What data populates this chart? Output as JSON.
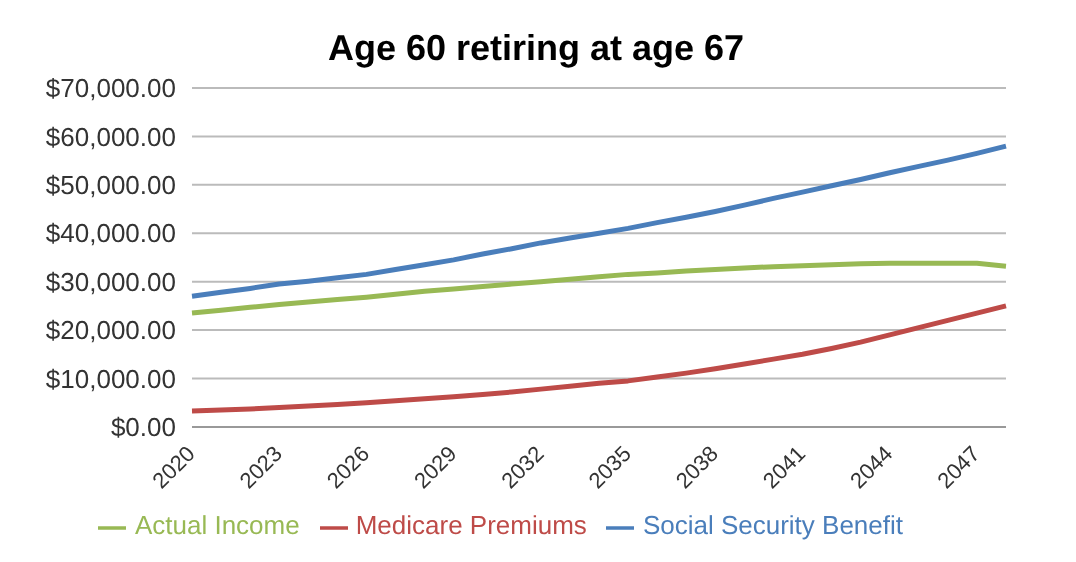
{
  "chart_data": {
    "type": "line",
    "title": "Age 60 retiring at age 67",
    "categories": [
      "2020",
      null,
      null,
      "2023",
      null,
      null,
      "2026",
      null,
      null,
      "2029",
      null,
      null,
      "2032",
      null,
      null,
      "2035",
      null,
      null,
      "2038",
      null,
      null,
      "2041",
      null,
      null,
      "2044",
      null,
      null,
      "2047",
      null
    ],
    "series": [
      {
        "name": "Social Security Benefit",
        "color": "#4a7ebb",
        "values": [
          27000,
          27800,
          28600,
          29500,
          30100,
          30800,
          31500,
          32500,
          33500,
          34500,
          35700,
          36800,
          38000,
          39000,
          40000,
          41000,
          42200,
          43300,
          44500,
          45800,
          47200,
          48500,
          49800,
          51100,
          52500,
          53800,
          55100,
          56500,
          58000
        ]
      },
      {
        "name": "Medicare Premiums",
        "color": "#be4b48",
        "values": [
          3300,
          3500,
          3700,
          4000,
          4300,
          4600,
          5000,
          5400,
          5800,
          6200,
          6700,
          7200,
          7800,
          8400,
          9000,
          9500,
          10300,
          11100,
          12000,
          13000,
          14000,
          15000,
          16200,
          17500,
          19000,
          20500,
          22000,
          23500,
          25000
        ]
      },
      {
        "name": "Actual Income",
        "color": "#98b954",
        "values": [
          23500,
          24100,
          24700,
          25300,
          25800,
          26300,
          26800,
          27400,
          28000,
          28500,
          29000,
          29500,
          30000,
          30500,
          31000,
          31500,
          31800,
          32200,
          32500,
          32800,
          33100,
          33300,
          33500,
          33700,
          33800,
          33800,
          33800,
          33800,
          33200
        ]
      }
    ],
    "ylim": [
      0,
      70000
    ],
    "yticks": [
      {
        "value": 0,
        "label": "$0.00"
      },
      {
        "value": 10000,
        "label": "$10,000.00"
      },
      {
        "value": 20000,
        "label": "$20,000.00"
      },
      {
        "value": 30000,
        "label": "$30,000.00"
      },
      {
        "value": 40000,
        "label": "$40,000.00"
      },
      {
        "value": 50000,
        "label": "$50,000.00"
      },
      {
        "value": 60000,
        "label": "$60,000.00"
      },
      {
        "value": 70000,
        "label": "$70,000.00"
      }
    ],
    "grid": "y",
    "legend": "bottom",
    "marker": "none",
    "line_style": "solid"
  }
}
